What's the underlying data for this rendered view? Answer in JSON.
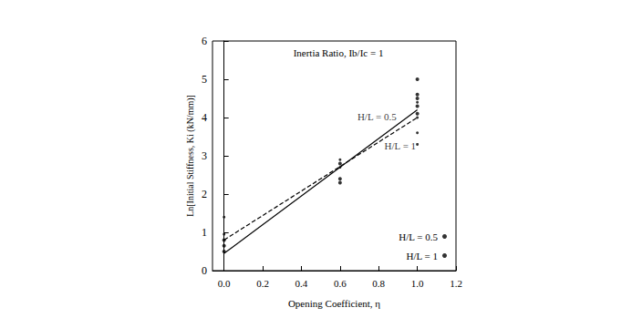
{
  "chart_data": {
    "type": "scatter",
    "title": "Inertia Ratio, Ib/Ic = 1",
    "x_label": "Opening Coefficient, η",
    "y_label": "Ln[Initial Stiffness, Ki (kN/mm)]",
    "xlim": [
      -0.06,
      1.2
    ],
    "ylim": [
      0,
      6
    ],
    "xticks": [
      {
        "value": 0,
        "label": "0.0"
      },
      0.2,
      0.4,
      0.6,
      0.8,
      {
        "value": 1,
        "label": "1.0"
      },
      1.2
    ],
    "yticks": [
      0,
      1,
      2,
      3,
      4,
      5,
      6
    ],
    "grid": false,
    "legend": "lower right",
    "series": [
      {
        "name": "H/L = 0.5",
        "type": "scatter",
        "marker": "circle",
        "color": "#000000",
        "x": [
          0,
          0,
          0,
          0.6,
          0.6,
          0.6,
          1,
          1,
          1,
          1,
          1
        ],
        "values": [
          0.5,
          0.65,
          0.8,
          2.3,
          2.4,
          2.8,
          5.0,
          4.6,
          4.5,
          4.3,
          4.1
        ]
      },
      {
        "name": "H/L = 1",
        "type": "scatter",
        "marker": "circle",
        "color": "#000000",
        "x": [
          0,
          0,
          0.6,
          0.6,
          1,
          1,
          1,
          1
        ],
        "values": [
          0.95,
          1.4,
          2.7,
          2.9,
          4.4,
          4.0,
          3.6,
          3.3
        ]
      },
      {
        "type": "line",
        "line_style": "solid",
        "color": "#000000",
        "x": [
          0,
          1
        ],
        "values": [
          0.45,
          4.2
        ]
      },
      {
        "type": "line",
        "line_style": "dashed",
        "color": "#000000",
        "x": [
          0,
          1
        ],
        "values": [
          0.8,
          4.0
        ]
      }
    ],
    "annotations": [
      {
        "text": "H/L = 0.5",
        "x": 0.69,
        "y": 4.02
      },
      {
        "text": "H/L = 1",
        "x": 0.83,
        "y": 3.26
      }
    ]
  }
}
